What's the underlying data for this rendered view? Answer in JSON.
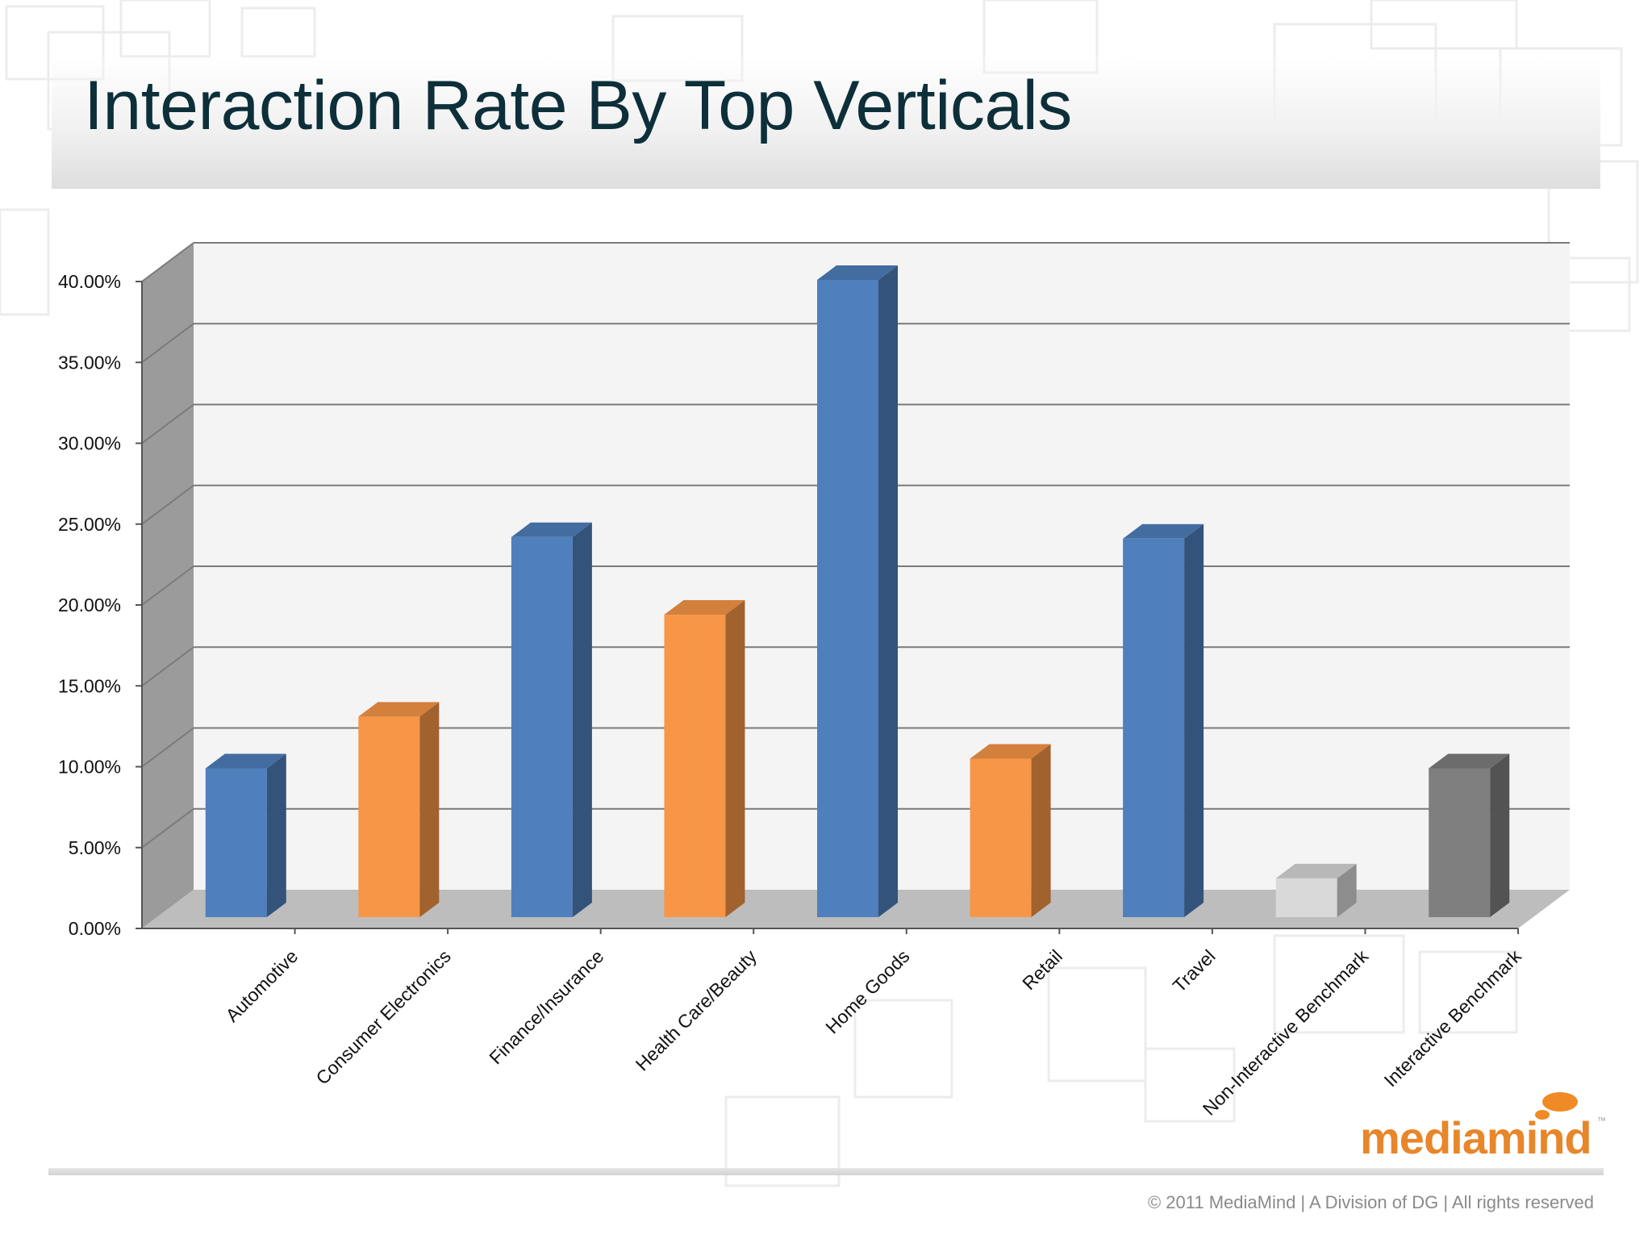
{
  "slide": {
    "title": "Interaction Rate By Top Verticals",
    "logo_text": "mediamind",
    "logo_tm": "™",
    "copyright": "© 2011 MediaMind | A Division of DG | All rights reserved"
  },
  "chart_data": {
    "type": "bar",
    "style": "3d-column",
    "categories": [
      "Automotive",
      "Consumer Electronics",
      "Finance/Insurance",
      "Health Care/Beauty",
      "Home Goods",
      "Retail",
      "Travel",
      "Non-Interactive Benchmark",
      "Interactive Benchmark"
    ],
    "values": [
      9.8,
      13.0,
      24.1,
      19.3,
      40.0,
      10.4,
      24.0,
      3.0,
      9.8
    ],
    "colors": [
      "#4f80bd",
      "#f79646",
      "#4f80bd",
      "#f79646",
      "#4f80bd",
      "#f79646",
      "#4f80bd",
      "#d9d9d9",
      "#7f7f7f"
    ],
    "yticks": [
      "0.00%",
      "5.00%",
      "10.00%",
      "15.00%",
      "20.00%",
      "25.00%",
      "30.00%",
      "35.00%",
      "40.00%"
    ],
    "ylim": [
      0,
      40
    ],
    "grid": true,
    "legend": "none"
  }
}
